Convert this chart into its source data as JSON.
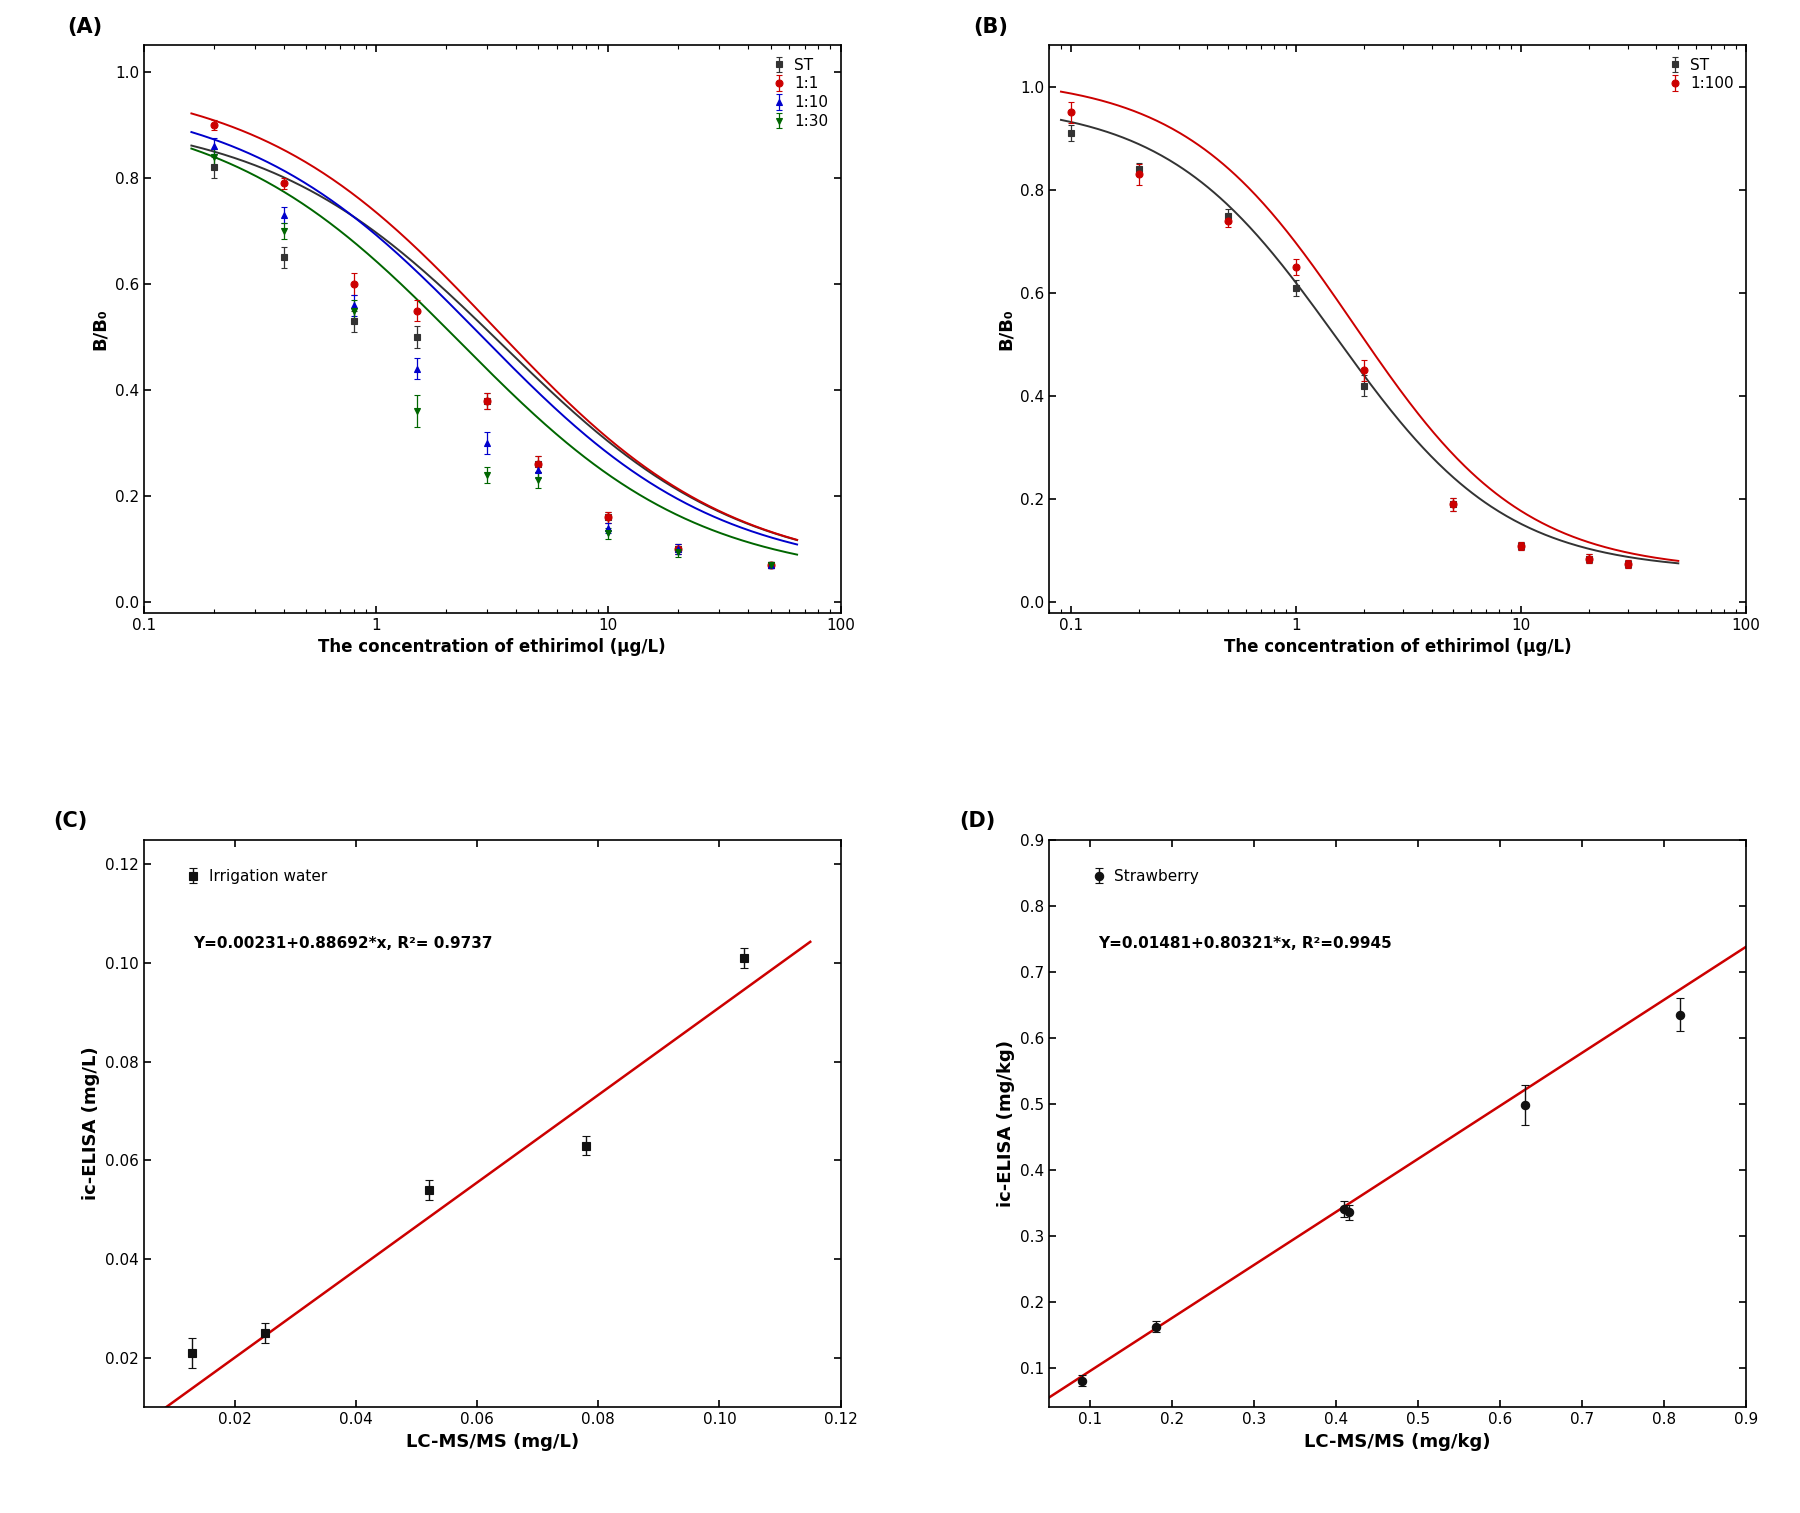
{
  "panel_A": {
    "label": "(A)",
    "xlabel": "The concentration of ethirimol (μg/L)",
    "ylabel": "B/B₀",
    "xlim": [
      0.15,
      70
    ],
    "ylim": [
      -0.02,
      1.05
    ],
    "yticks": [
      0.0,
      0.2,
      0.4,
      0.6,
      0.8,
      1.0
    ],
    "series": [
      {
        "name": "ST",
        "color": "#333333",
        "marker": "s",
        "x": [
          0.2,
          0.4,
          0.8,
          1.5,
          3.0,
          5.0,
          10.0,
          20.0,
          50.0
        ],
        "y": [
          0.82,
          0.65,
          0.53,
          0.5,
          0.38,
          0.26,
          0.16,
          0.1,
          0.07
        ],
        "yerr": [
          0.02,
          0.02,
          0.02,
          0.02,
          0.015,
          0.015,
          0.01,
          0.01,
          0.005
        ],
        "fit_params": {
          "top": 0.92,
          "bottom": 0.05,
          "ic50": 3.5,
          "hill": 0.85
        }
      },
      {
        "name": "1:1",
        "color": "#cc0000",
        "marker": "o",
        "x": [
          0.2,
          0.4,
          0.8,
          1.5,
          3.0,
          5.0,
          10.0,
          20.0,
          50.0
        ],
        "y": [
          0.9,
          0.79,
          0.6,
          0.55,
          0.38,
          0.26,
          0.16,
          0.1,
          0.07
        ],
        "yerr": [
          0.01,
          0.01,
          0.02,
          0.02,
          0.015,
          0.015,
          0.01,
          0.01,
          0.005
        ],
        "fit_params": {
          "top": 0.99,
          "bottom": 0.05,
          "ic50": 3.2,
          "hill": 0.85
        }
      },
      {
        "name": "1:10",
        "color": "#0000cc",
        "marker": "^",
        "x": [
          0.2,
          0.4,
          0.8,
          1.5,
          3.0,
          5.0,
          10.0,
          20.0,
          50.0
        ],
        "y": [
          0.86,
          0.73,
          0.56,
          0.44,
          0.3,
          0.25,
          0.14,
          0.1,
          0.07
        ],
        "yerr": [
          0.015,
          0.015,
          0.02,
          0.02,
          0.02,
          0.015,
          0.01,
          0.01,
          0.005
        ],
        "fit_params": {
          "top": 0.96,
          "bottom": 0.05,
          "ic50": 2.8,
          "hill": 0.85
        }
      },
      {
        "name": "1:30",
        "color": "#006600",
        "marker": "v",
        "x": [
          0.2,
          0.4,
          0.8,
          1.5,
          3.0,
          5.0,
          10.0,
          20.0,
          50.0
        ],
        "y": [
          0.84,
          0.7,
          0.55,
          0.36,
          0.24,
          0.23,
          0.13,
          0.095,
          0.07
        ],
        "yerr": [
          0.015,
          0.015,
          0.02,
          0.03,
          0.015,
          0.015,
          0.01,
          0.01,
          0.005
        ],
        "fit_params": {
          "top": 0.94,
          "bottom": 0.04,
          "ic50": 2.3,
          "hill": 0.85
        }
      }
    ]
  },
  "panel_B": {
    "label": "(B)",
    "xlabel": "The concentration of ethirimol (μg/L)",
    "ylabel": "B/B₀",
    "xlim": [
      0.08,
      70
    ],
    "ylim": [
      -0.02,
      1.08
    ],
    "yticks": [
      0.0,
      0.2,
      0.4,
      0.6,
      0.8,
      1.0
    ],
    "series": [
      {
        "name": "ST",
        "color": "#333333",
        "marker": "s",
        "x": [
          0.1,
          0.2,
          0.5,
          1.0,
          2.0,
          5.0,
          10.0,
          20.0,
          30.0
        ],
        "y": [
          0.91,
          0.84,
          0.75,
          0.61,
          0.42,
          0.19,
          0.11,
          0.085,
          0.075
        ],
        "yerr": [
          0.015,
          0.012,
          0.012,
          0.015,
          0.02,
          0.012,
          0.008,
          0.008,
          0.008
        ],
        "fit_params": {
          "top": 0.97,
          "bottom": 0.06,
          "ic50": 1.5,
          "hill": 1.15
        }
      },
      {
        "name": "1:100",
        "color": "#cc0000",
        "marker": "o",
        "x": [
          0.1,
          0.2,
          0.5,
          1.0,
          2.0,
          5.0,
          10.0,
          20.0,
          30.0
        ],
        "y": [
          0.95,
          0.83,
          0.74,
          0.65,
          0.45,
          0.19,
          0.11,
          0.085,
          0.075
        ],
        "yerr": [
          0.02,
          0.02,
          0.012,
          0.015,
          0.02,
          0.012,
          0.008,
          0.008,
          0.008
        ],
        "fit_params": {
          "top": 1.02,
          "bottom": 0.06,
          "ic50": 1.8,
          "hill": 1.15
        }
      }
    ]
  },
  "panel_C": {
    "label": "(C)",
    "xlabel": "LC-MS/MS (mg/L)",
    "ylabel": "ic-ELISA (mg/L)",
    "xlim": [
      0.005,
      0.115
    ],
    "ylim": [
      0.01,
      0.125
    ],
    "xticks": [
      0.02,
      0.04,
      0.06,
      0.08,
      0.1,
      0.12
    ],
    "yticks": [
      0.02,
      0.04,
      0.06,
      0.08,
      0.1,
      0.12
    ],
    "legend_label": "Irrigation water",
    "equation": "Y=0.00231+0.88692*x, R²= 0.9737",
    "slope": 0.88692,
    "intercept": 0.00231,
    "line_xmin": 0.005,
    "line_xmax": 0.115,
    "points": {
      "x": [
        0.013,
        0.025,
        0.052,
        0.078,
        0.104
      ],
      "y": [
        0.021,
        0.025,
        0.054,
        0.063,
        0.101
      ],
      "yerr": [
        0.003,
        0.002,
        0.002,
        0.002,
        0.002
      ]
    },
    "line_color": "#cc0000",
    "point_color": "#111111",
    "point_marker": "s"
  },
  "panel_D": {
    "label": "(D)",
    "xlabel": "LC-MS/MS (mg/kg)",
    "ylabel": "ic-ELISA (mg/kg)",
    "xlim": [
      0.05,
      0.9
    ],
    "ylim": [
      0.04,
      0.78
    ],
    "xticks": [
      0.1,
      0.2,
      0.3,
      0.4,
      0.5,
      0.6,
      0.7,
      0.8,
      0.9
    ],
    "yticks": [
      0.1,
      0.2,
      0.3,
      0.4,
      0.5,
      0.6,
      0.7,
      0.8,
      0.9
    ],
    "legend_label": "Strawberry",
    "equation": "Y=0.01481+0.80321*x, R²=0.9945",
    "slope": 0.80321,
    "intercept": 0.01481,
    "line_xmin": 0.05,
    "line_xmax": 0.9,
    "points": {
      "x": [
        0.09,
        0.18,
        0.41,
        0.415,
        0.63,
        0.82
      ],
      "y": [
        0.08,
        0.162,
        0.34,
        0.335,
        0.498,
        0.635
      ],
      "yerr": [
        0.008,
        0.008,
        0.012,
        0.012,
        0.03,
        0.025
      ]
    },
    "line_color": "#cc0000",
    "point_color": "#111111",
    "point_marker": "o"
  }
}
